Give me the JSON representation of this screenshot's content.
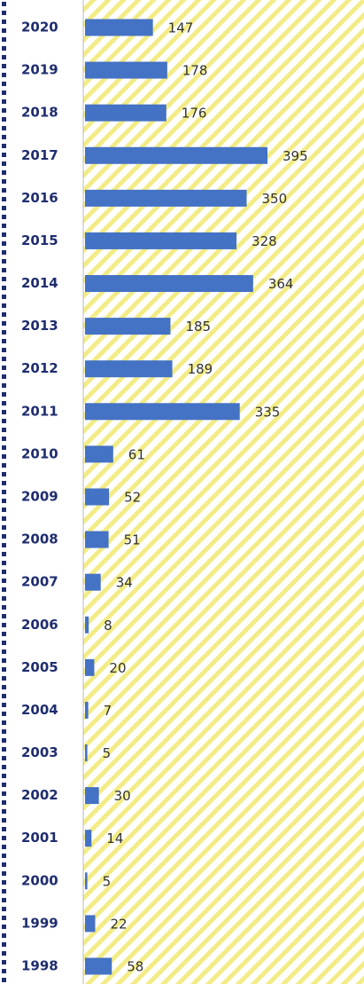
{
  "chart_data": {
    "type": "bar",
    "orientation": "horizontal",
    "categories": [
      "2020",
      "2019",
      "2018",
      "2017",
      "2016",
      "2015",
      "2014",
      "2013",
      "2012",
      "2011",
      "2010",
      "2009",
      "2008",
      "2007",
      "2006",
      "2005",
      "2004",
      "2003",
      "2002",
      "2001",
      "2000",
      "1999",
      "1998"
    ],
    "values": [
      147,
      178,
      176,
      395,
      350,
      328,
      364,
      185,
      189,
      335,
      61,
      52,
      51,
      34,
      8,
      20,
      7,
      5,
      30,
      14,
      5,
      22,
      58
    ],
    "color": "#4472c4"
  }
}
